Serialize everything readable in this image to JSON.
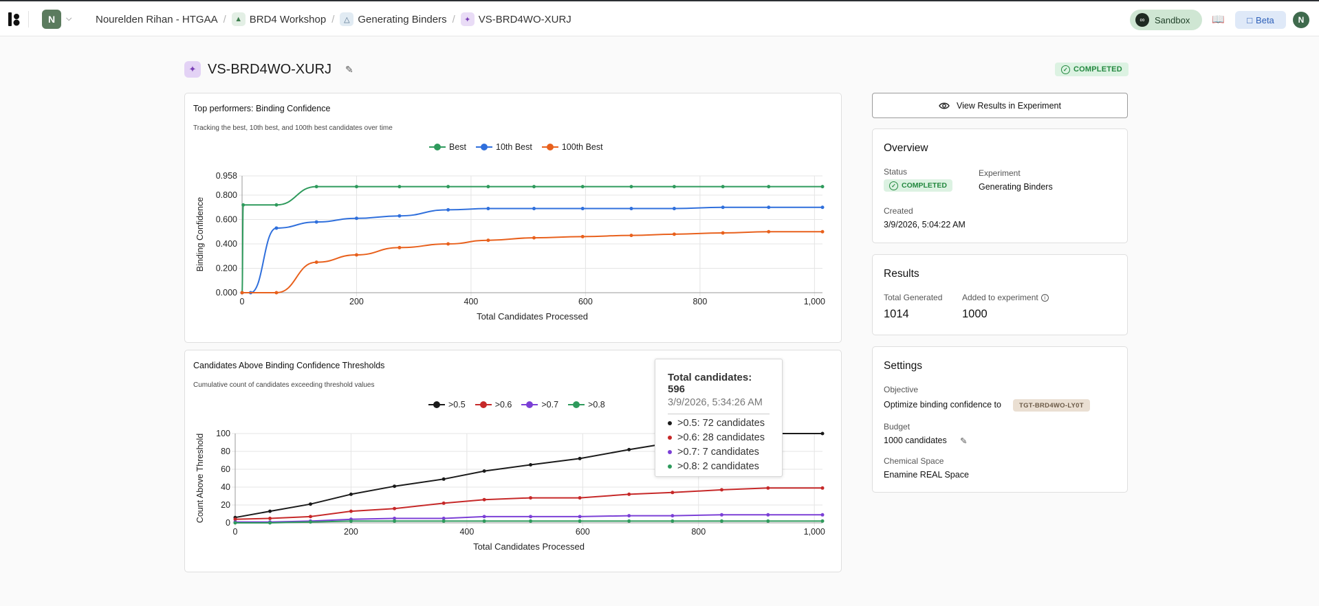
{
  "topbar": {
    "workspace_initial": "N",
    "breadcrumbs": [
      "Nourelden Rihan - HTGAA",
      "BRD4 Workshop",
      "Generating Binders",
      "VS-BRD4WO-XURJ"
    ],
    "sandbox_label": "Sandbox",
    "beta_label": "Beta",
    "user_initial": "N"
  },
  "page": {
    "title": "VS-BRD4WO-XURJ",
    "status": "COMPLETED"
  },
  "chart1": {
    "title": "Top performers: Binding Confidence",
    "subtitle": "Tracking the best, 10th best, and 100th best candidates over time",
    "y_ticks": [
      "0.000",
      "0.200",
      "0.400",
      "0.600",
      "0.800",
      "0.958"
    ],
    "x_ticks": [
      "0",
      "200",
      "400",
      "600",
      "800",
      "1,000"
    ]
  },
  "chart2": {
    "title": "Candidates Above Binding Confidence Thresholds",
    "subtitle": "Cumulative count of candidates exceeding threshold values",
    "y_ticks": [
      "0",
      "20",
      "40",
      "60",
      "80",
      "100"
    ],
    "x_ticks": [
      "0",
      "200",
      "400",
      "600",
      "800",
      "1,000"
    ]
  },
  "chart_data": [
    {
      "type": "line",
      "title": "Top performers: Binding Confidence",
      "xlabel": "Total Candidates Processed",
      "ylabel": "Binding Confidence",
      "xlim": [
        0,
        1014
      ],
      "ylim": [
        0,
        0.958
      ],
      "legend": "top-center",
      "grid": true,
      "series": [
        {
          "name": "Best",
          "color": "#2e9a5c",
          "x": [
            0,
            2,
            60,
            130,
            200,
            275,
            360,
            430,
            510,
            595,
            680,
            755,
            840,
            920,
            1014
          ],
          "y": [
            0,
            0.72,
            0.72,
            0.87,
            0.87,
            0.87,
            0.87,
            0.87,
            0.87,
            0.87,
            0.87,
            0.87,
            0.87,
            0.87,
            0.87
          ]
        },
        {
          "name": "10th Best",
          "color": "#2f6fdc",
          "x": [
            0,
            15,
            60,
            130,
            200,
            275,
            360,
            430,
            510,
            595,
            680,
            755,
            840,
            920,
            1014
          ],
          "y": [
            0,
            0,
            0.53,
            0.58,
            0.61,
            0.63,
            0.68,
            0.69,
            0.69,
            0.69,
            0.69,
            0.69,
            0.7,
            0.7,
            0.7
          ]
        },
        {
          "name": "100th Best",
          "color": "#e8601c",
          "x": [
            0,
            60,
            130,
            200,
            275,
            360,
            430,
            510,
            595,
            680,
            755,
            840,
            920,
            1014
          ],
          "y": [
            0,
            0,
            0.25,
            0.31,
            0.37,
            0.4,
            0.43,
            0.45,
            0.46,
            0.47,
            0.48,
            0.49,
            0.5,
            0.5
          ]
        }
      ]
    },
    {
      "type": "line",
      "title": "Candidates Above Binding Confidence Thresholds",
      "xlabel": "Total Candidates Processed",
      "ylabel": "Count Above Threshold",
      "xlim": [
        0,
        1014
      ],
      "ylim": [
        0,
        100
      ],
      "legend": "top-center",
      "grid": true,
      "series": [
        {
          "name": ">0.5",
          "color": "#1a1a1a",
          "x": [
            0,
            60,
            130,
            200,
            275,
            360,
            430,
            510,
            595,
            680,
            755,
            840,
            920,
            1014
          ],
          "y": [
            6,
            13,
            21,
            32,
            41,
            49,
            58,
            65,
            72,
            82,
            90,
            96,
            100,
            100
          ]
        },
        {
          "name": ">0.6",
          "color": "#c62828",
          "x": [
            0,
            60,
            130,
            200,
            275,
            360,
            430,
            510,
            595,
            680,
            755,
            840,
            920,
            1014
          ],
          "y": [
            4,
            5,
            7,
            13,
            16,
            22,
            26,
            28,
            28,
            32,
            34,
            37,
            39,
            39
          ]
        },
        {
          "name": ">0.7",
          "color": "#7b3fd6",
          "x": [
            0,
            60,
            130,
            200,
            275,
            360,
            430,
            510,
            595,
            680,
            755,
            840,
            920,
            1014
          ],
          "y": [
            1,
            1,
            2,
            4,
            5,
            5,
            7,
            7,
            7,
            8,
            8,
            9,
            9,
            9
          ]
        },
        {
          "name": ">0.8",
          "color": "#2e9a5c",
          "x": [
            0,
            60,
            130,
            200,
            275,
            360,
            430,
            510,
            595,
            680,
            755,
            840,
            920,
            1014
          ],
          "y": [
            0,
            0,
            1,
            2,
            2,
            2,
            2,
            2,
            2,
            2,
            2,
            2,
            2,
            2
          ]
        }
      ]
    }
  ],
  "tooltip": {
    "title": "Total candidates: 596",
    "date": "3/9/2026, 5:34:26 AM",
    "rows": [
      {
        "text": ">0.5: 72 candidates",
        "color": "#1a1a1a"
      },
      {
        "text": ">0.6: 28 candidates",
        "color": "#c62828"
      },
      {
        "text": ">0.7: 7 candidates",
        "color": "#7b3fd6"
      },
      {
        "text": ">0.8: 2 candidates",
        "color": "#2e9a5c"
      }
    ]
  },
  "sidebar": {
    "view_button": "View Results in Experiment",
    "overview": {
      "title": "Overview",
      "status_label": "Status",
      "status_value": "COMPLETED",
      "experiment_label": "Experiment",
      "experiment_value": "Generating Binders",
      "created_label": "Created",
      "created_value": "3/9/2026, 5:04:22 AM"
    },
    "results": {
      "title": "Results",
      "total_label": "Total Generated",
      "total_value": "1014",
      "added_label": "Added to experiment",
      "added_value": "1000"
    },
    "settings": {
      "title": "Settings",
      "objective_label": "Objective",
      "objective_value": "Optimize binding confidence to",
      "target_tag": "TGT-BRD4WO-LY0T",
      "budget_label": "Budget",
      "budget_value": "1000 candidates",
      "space_label": "Chemical Space",
      "space_value": "Enamine REAL Space"
    }
  }
}
